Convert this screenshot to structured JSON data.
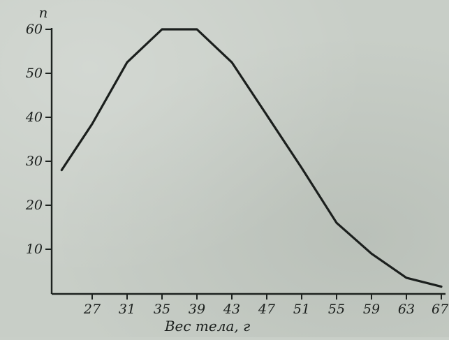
{
  "chart_data": {
    "type": "line",
    "title": "",
    "xlabel": "Вес тела, г",
    "ylabel": "п",
    "x_ticks": [
      "27",
      "31",
      "35",
      "39",
      "43",
      "47",
      "51",
      "55",
      "59",
      "63",
      "67"
    ],
    "y_ticks": [
      "10",
      "20",
      "30",
      "40",
      "50",
      "60"
    ],
    "xlim": [
      23,
      67
    ],
    "ylim": [
      0,
      60
    ],
    "grid": false,
    "series": [
      {
        "x": [
          23.5,
          27,
          31,
          35,
          39,
          43,
          47,
          51,
          55,
          59,
          63,
          67
        ],
        "y": [
          28,
          38.5,
          52.5,
          60,
          60,
          52.5,
          40.5,
          28.5,
          16,
          9,
          3.5,
          1.5
        ]
      }
    ]
  },
  "colors": {
    "line": "#1b1f1d",
    "background": "#c8cec7"
  }
}
